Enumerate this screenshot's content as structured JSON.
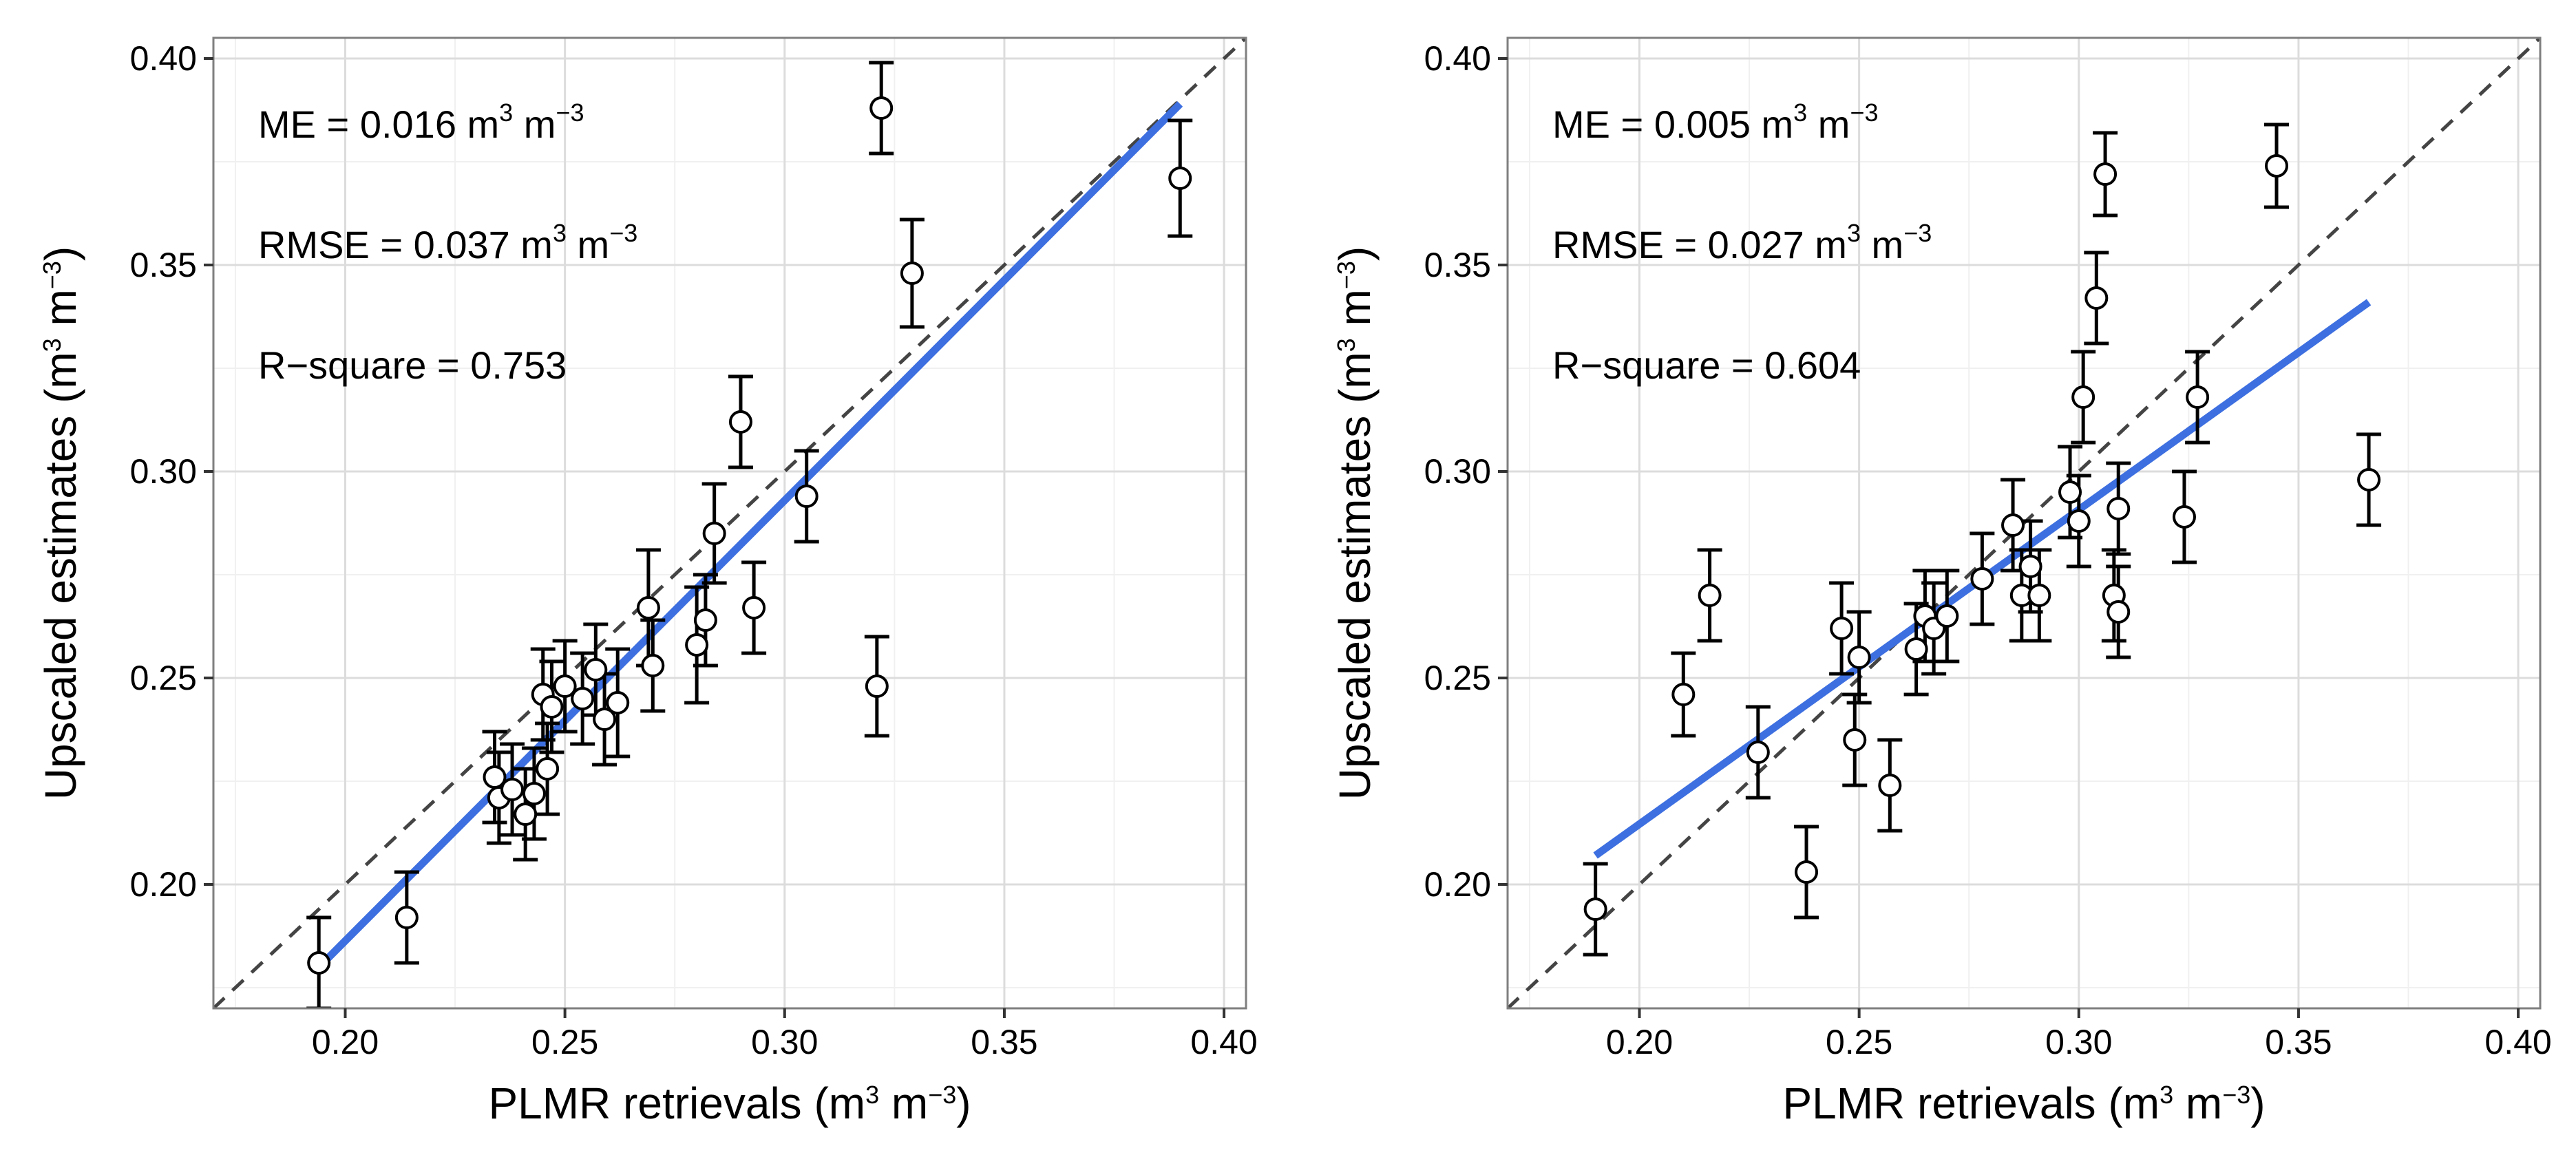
{
  "chart_data": [
    {
      "type": "scatter",
      "xlabel": {
        "main": "PLMR retrievals (m",
        "sup1": "3",
        "mid": " m",
        "sup2": "−3",
        "end": ")"
      },
      "ylabel": {
        "main": "Upscaled estimates (m",
        "sup1": "3",
        "mid": " m",
        "sup2": "−3",
        "end": ")"
      },
      "xlim": [
        0.17,
        0.405
      ],
      "ylim": [
        0.17,
        0.405
      ],
      "x_ticks": [
        "0.20",
        "0.25",
        "0.30",
        "0.35",
        "0.40"
      ],
      "y_ticks": [
        "0.20",
        "0.25",
        "0.30",
        "0.35",
        "0.40"
      ],
      "grid": true,
      "reference_line": "1:1 dashed",
      "regression_color": "#3d6fe0",
      "stats": [
        {
          "label": "ME = 0.016 m",
          "sup1": "3",
          "mid": " m",
          "sup2": "−3"
        },
        {
          "label": "RMSE = 0.037 m",
          "sup1": "3",
          "mid": " m",
          "sup2": "−3"
        },
        {
          "label": "R−square =  0.753",
          "sup1": "",
          "mid": "",
          "sup2": ""
        }
      ],
      "regression": {
        "x": [
          0.195,
          0.39
        ],
        "y": [
          0.181,
          0.389
        ]
      },
      "points": [
        {
          "x": 0.194,
          "y": 0.181,
          "err": 0.011
        },
        {
          "x": 0.214,
          "y": 0.192,
          "err": 0.011
        },
        {
          "x": 0.234,
          "y": 0.226,
          "err": 0.011
        },
        {
          "x": 0.235,
          "y": 0.221,
          "err": 0.011
        },
        {
          "x": 0.238,
          "y": 0.223,
          "err": 0.011
        },
        {
          "x": 0.241,
          "y": 0.217,
          "err": 0.011
        },
        {
          "x": 0.243,
          "y": 0.222,
          "err": 0.011
        },
        {
          "x": 0.245,
          "y": 0.246,
          "err": 0.011
        },
        {
          "x": 0.246,
          "y": 0.228,
          "err": 0.011
        },
        {
          "x": 0.247,
          "y": 0.243,
          "err": 0.011
        },
        {
          "x": 0.25,
          "y": 0.248,
          "err": 0.011
        },
        {
          "x": 0.254,
          "y": 0.245,
          "err": 0.011
        },
        {
          "x": 0.257,
          "y": 0.252,
          "err": 0.011
        },
        {
          "x": 0.259,
          "y": 0.24,
          "err": 0.011
        },
        {
          "x": 0.262,
          "y": 0.244,
          "err": 0.013
        },
        {
          "x": 0.269,
          "y": 0.267,
          "err": 0.014
        },
        {
          "x": 0.27,
          "y": 0.253,
          "err": 0.011
        },
        {
          "x": 0.28,
          "y": 0.258,
          "err": 0.014
        },
        {
          "x": 0.282,
          "y": 0.264,
          "err": 0.011
        },
        {
          "x": 0.284,
          "y": 0.285,
          "err": 0.012
        },
        {
          "x": 0.29,
          "y": 0.312,
          "err": 0.011
        },
        {
          "x": 0.293,
          "y": 0.267,
          "err": 0.011
        },
        {
          "x": 0.305,
          "y": 0.294,
          "err": 0.011
        },
        {
          "x": 0.321,
          "y": 0.248,
          "err": 0.012
        },
        {
          "x": 0.322,
          "y": 0.388,
          "err": 0.011
        },
        {
          "x": 0.329,
          "y": 0.348,
          "err": 0.013
        },
        {
          "x": 0.39,
          "y": 0.371,
          "err": 0.014
        }
      ]
    },
    {
      "type": "scatter",
      "xlabel": {
        "main": "PLMR retrievals (m",
        "sup1": "3",
        "mid": " m",
        "sup2": "−3",
        "end": ")"
      },
      "ylabel": {
        "main": "Upscaled estimates (m",
        "sup1": "3",
        "mid": " m",
        "sup2": "−3",
        "end": ")"
      },
      "xlim": [
        0.17,
        0.405
      ],
      "ylim": [
        0.17,
        0.405
      ],
      "x_ticks": [
        "0.20",
        "0.25",
        "0.30",
        "0.35",
        "0.40"
      ],
      "y_ticks": [
        "0.20",
        "0.25",
        "0.30",
        "0.35",
        "0.40"
      ],
      "grid": true,
      "reference_line": "1:1 dashed",
      "regression_color": "#3d6fe0",
      "stats": [
        {
          "label": "ME = 0.005 m",
          "sup1": "3",
          "mid": " m",
          "sup2": "−3"
        },
        {
          "label": "RMSE = 0.027 m",
          "sup1": "3",
          "mid": " m",
          "sup2": "−3"
        },
        {
          "label": "R−square =  0.604",
          "sup1": "",
          "mid": "",
          "sup2": ""
        }
      ],
      "regression": {
        "x": [
          0.19,
          0.366
        ],
        "y": [
          0.207,
          0.341
        ]
      },
      "points": [
        {
          "x": 0.19,
          "y": 0.194,
          "err": 0.011
        },
        {
          "x": 0.21,
          "y": 0.246,
          "err": 0.01
        },
        {
          "x": 0.216,
          "y": 0.27,
          "err": 0.011
        },
        {
          "x": 0.227,
          "y": 0.232,
          "err": 0.011
        },
        {
          "x": 0.238,
          "y": 0.203,
          "err": 0.011
        },
        {
          "x": 0.246,
          "y": 0.262,
          "err": 0.011
        },
        {
          "x": 0.249,
          "y": 0.235,
          "err": 0.011
        },
        {
          "x": 0.25,
          "y": 0.255,
          "err": 0.011
        },
        {
          "x": 0.257,
          "y": 0.224,
          "err": 0.011
        },
        {
          "x": 0.263,
          "y": 0.257,
          "err": 0.011
        },
        {
          "x": 0.265,
          "y": 0.265,
          "err": 0.011
        },
        {
          "x": 0.267,
          "y": 0.262,
          "err": 0.011
        },
        {
          "x": 0.27,
          "y": 0.265,
          "err": 0.011
        },
        {
          "x": 0.278,
          "y": 0.274,
          "err": 0.011
        },
        {
          "x": 0.285,
          "y": 0.287,
          "err": 0.011
        },
        {
          "x": 0.287,
          "y": 0.27,
          "err": 0.011
        },
        {
          "x": 0.289,
          "y": 0.277,
          "err": 0.011
        },
        {
          "x": 0.291,
          "y": 0.27,
          "err": 0.011
        },
        {
          "x": 0.298,
          "y": 0.295,
          "err": 0.011
        },
        {
          "x": 0.3,
          "y": 0.288,
          "err": 0.011
        },
        {
          "x": 0.301,
          "y": 0.318,
          "err": 0.011
        },
        {
          "x": 0.304,
          "y": 0.342,
          "err": 0.011
        },
        {
          "x": 0.306,
          "y": 0.372,
          "err": 0.01
        },
        {
          "x": 0.308,
          "y": 0.27,
          "err": 0.011
        },
        {
          "x": 0.309,
          "y": 0.266,
          "err": 0.011
        },
        {
          "x": 0.309,
          "y": 0.291,
          "err": 0.011
        },
        {
          "x": 0.324,
          "y": 0.289,
          "err": 0.011
        },
        {
          "x": 0.327,
          "y": 0.318,
          "err": 0.011
        },
        {
          "x": 0.345,
          "y": 0.374,
          "err": 0.01
        },
        {
          "x": 0.366,
          "y": 0.298,
          "err": 0.011
        }
      ]
    }
  ]
}
